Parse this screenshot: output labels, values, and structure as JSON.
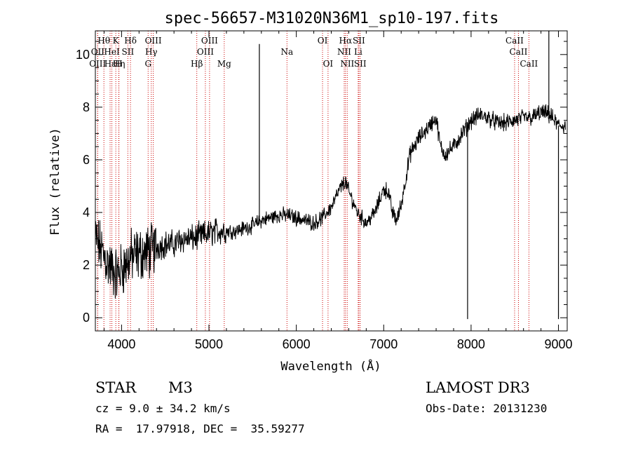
{
  "chart_data": {
    "type": "line",
    "title": "spec-56657-M31020N36M1_sp10-197.fits",
    "xlabel": "Wavelength (Å)",
    "ylabel": "Flux (relative)",
    "xlim": [
      3700,
      9100
    ],
    "ylim": [
      -0.5,
      10.9
    ],
    "x_ticks": [
      4000,
      5000,
      6000,
      7000,
      8000,
      9000
    ],
    "x_tick_labels": [
      "4000",
      "5000",
      "6000",
      "7000",
      "8000",
      "9000"
    ],
    "y_ticks": [
      0,
      2,
      4,
      6,
      8,
      10
    ],
    "y_tick_labels": [
      "0",
      "2",
      "4",
      "6",
      "8",
      "10"
    ],
    "grid": false,
    "spectrum_anchors": {
      "x": [
        3700,
        3780,
        3850,
        3900,
        3950,
        4000,
        4050,
        4100,
        4200,
        4300,
        4400,
        4500,
        4600,
        4700,
        4800,
        4900,
        5000,
        5100,
        5200,
        5300,
        5400,
        5500,
        5600,
        5700,
        5800,
        5900,
        6000,
        6100,
        6200,
        6300,
        6400,
        6500,
        6560,
        6600,
        6700,
        6800,
        6900,
        7000,
        7050,
        7100,
        7150,
        7200,
        7300,
        7400,
        7500,
        7600,
        7650,
        7700,
        7800,
        7900,
        8000,
        8100,
        8200,
        8300,
        8400,
        8500,
        8600,
        8700,
        8800,
        8900,
        9000,
        9080
      ],
      "y": [
        3.0,
        2.5,
        2.0,
        1.8,
        1.6,
        1.9,
        2.0,
        2.3,
        2.4,
        2.5,
        2.7,
        2.8,
        2.8,
        3.0,
        3.0,
        3.1,
        3.2,
        3.3,
        3.3,
        3.3,
        3.4,
        3.5,
        3.7,
        3.8,
        3.9,
        3.9,
        3.8,
        3.7,
        3.6,
        3.8,
        4.2,
        4.9,
        5.2,
        4.8,
        4.0,
        3.6,
        4.0,
        4.9,
        4.8,
        4.0,
        3.7,
        4.3,
        6.2,
        6.8,
        7.2,
        7.6,
        6.5,
        6.2,
        6.5,
        7.0,
        7.5,
        7.7,
        7.6,
        7.4,
        7.4,
        7.5,
        7.6,
        7.6,
        7.8,
        7.7,
        7.3,
        7.3
      ]
    },
    "spikes": [
      {
        "x": 5577,
        "y": 10.4
      },
      {
        "x": 7960,
        "y": -0.05
      },
      {
        "x": 8890,
        "y": 10.9
      },
      {
        "x": 9000,
        "y": -0.05
      }
    ],
    "lines": [
      {
        "wl": 3798,
        "label": "Hθ",
        "row": 1
      },
      {
        "wl": 3727,
        "label": "OII",
        "row": 2
      },
      {
        "wl": 3726,
        "label": "OIII",
        "row": 3
      },
      {
        "wl": 3869,
        "label": "Hε",
        "row": 3
      },
      {
        "wl": 3934,
        "label": "K",
        "row": 1
      },
      {
        "wl": 3889,
        "label": "HeI",
        "row": 2
      },
      {
        "wl": 3970,
        "label": "Hη",
        "row": 3
      },
      {
        "wl": 3968,
        "label": "H",
        "row": 3
      },
      {
        "wl": 4102,
        "label": "Hδ",
        "row": 1
      },
      {
        "wl": 4072,
        "label": "SII",
        "row": 2
      },
      {
        "wl": 4340,
        "label": "Hγ",
        "row": 2
      },
      {
        "wl": 4363,
        "label": "OIII",
        "row": 1
      },
      {
        "wl": 4304,
        "label": "G",
        "row": 3
      },
      {
        "wl": 4861,
        "label": "Hβ",
        "row": 3
      },
      {
        "wl": 4959,
        "label": "OIII",
        "row": 2
      },
      {
        "wl": 5007,
        "label": "OIII",
        "row": 1
      },
      {
        "wl": 5175,
        "label": "Mg",
        "row": 3
      },
      {
        "wl": 5893,
        "label": "Na",
        "row": 2
      },
      {
        "wl": 6300,
        "label": "OI",
        "row": 1
      },
      {
        "wl": 6363,
        "label": "OI",
        "row": 3
      },
      {
        "wl": 6563,
        "label": "Hα",
        "row": 1
      },
      {
        "wl": 6548,
        "label": "NII",
        "row": 2
      },
      {
        "wl": 6583,
        "label": "NII",
        "row": 3
      },
      {
        "wl": 6716,
        "label": "SII",
        "row": 1
      },
      {
        "wl": 6708,
        "label": "Li",
        "row": 2
      },
      {
        "wl": 6731,
        "label": "SII",
        "row": 3
      },
      {
        "wl": 8498,
        "label": "CaII",
        "row": 1
      },
      {
        "wl": 8542,
        "label": "CaII",
        "row": 2
      },
      {
        "wl": 8662,
        "label": "CaII",
        "row": 3
      }
    ]
  },
  "info": {
    "class_label": "STAR",
    "subclass": "M3",
    "survey": "LAMOST DR3",
    "cz": "cz = 9.0 ± 34.2 km/s",
    "obs_date": "Obs-Date: 20131230",
    "coords": "RA =  17.97918, DEC =  35.59277"
  },
  "colors": {
    "spectrum": "#000000",
    "line_marker": "#cc0000",
    "axes": "#000000",
    "background": "#ffffff"
  }
}
